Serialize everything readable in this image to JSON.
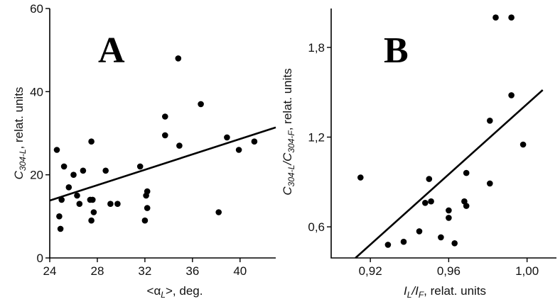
{
  "chart_data": [
    {
      "type": "scatter",
      "panel_label": "A",
      "xlabel_main": "<α",
      "xlabel_sub": "L",
      "xlabel_rest": ">, deg.",
      "ylabel_main": "C",
      "ylabel_sub": "304-L",
      "ylabel_rest": ", relat. units",
      "xlim": [
        24,
        43
      ],
      "ylim": [
        0,
        60
      ],
      "xticks": [
        24,
        28,
        32,
        36,
        40
      ],
      "yticks": [
        0,
        20,
        40,
        60
      ],
      "xtick_labels": [
        "24",
        "28",
        "32",
        "36",
        "40"
      ],
      "ytick_labels": [
        "0",
        "20",
        "40",
        "60"
      ],
      "points": [
        {
          "x": 24.6,
          "y": 26
        },
        {
          "x": 24.8,
          "y": 10
        },
        {
          "x": 25.0,
          "y": 14
        },
        {
          "x": 24.9,
          "y": 7
        },
        {
          "x": 25.2,
          "y": 22
        },
        {
          "x": 25.6,
          "y": 17
        },
        {
          "x": 26.0,
          "y": 20
        },
        {
          "x": 26.3,
          "y": 15
        },
        {
          "x": 26.5,
          "y": 13
        },
        {
          "x": 26.8,
          "y": 21
        },
        {
          "x": 27.4,
          "y": 14
        },
        {
          "x": 27.5,
          "y": 28
        },
        {
          "x": 27.6,
          "y": 14
        },
        {
          "x": 27.5,
          "y": 9
        },
        {
          "x": 27.7,
          "y": 11
        },
        {
          "x": 28.7,
          "y": 21
        },
        {
          "x": 29.1,
          "y": 13
        },
        {
          "x": 29.7,
          "y": 13
        },
        {
          "x": 31.6,
          "y": 22
        },
        {
          "x": 32.0,
          "y": 9
        },
        {
          "x": 32.1,
          "y": 15
        },
        {
          "x": 32.2,
          "y": 16
        },
        {
          "x": 32.2,
          "y": 12
        },
        {
          "x": 33.7,
          "y": 34
        },
        {
          "x": 33.7,
          "y": 29.5
        },
        {
          "x": 34.8,
          "y": 48
        },
        {
          "x": 34.9,
          "y": 27
        },
        {
          "x": 36.7,
          "y": 37
        },
        {
          "x": 38.2,
          "y": 11
        },
        {
          "x": 38.9,
          "y": 29
        },
        {
          "x": 39.9,
          "y": 26
        },
        {
          "x": 41.2,
          "y": 28
        }
      ],
      "fit_line": {
        "x": [
          24,
          43
        ],
        "y": [
          13.8,
          31.4
        ]
      }
    },
    {
      "type": "scatter",
      "panel_label": "B",
      "xlabel_main": "I",
      "xlabel_sub1": "L",
      "xlabel_mid": "/I",
      "xlabel_sub2": "F",
      "xlabel_rest": ", relat. units",
      "ylabel_main": "C",
      "ylabel_sub1": "304-L",
      "ylabel_mid": "/C",
      "ylabel_sub2": "304-F",
      "ylabel_rest": ", relat. units",
      "xlim": [
        0.9,
        1.015
      ],
      "ylim": [
        0.392,
        2.06
      ],
      "xticks": [
        0.92,
        0.96,
        1.0
      ],
      "yticks": [
        0.6,
        1.2,
        1.8
      ],
      "xtick_labels": [
        "0,92",
        "0,96",
        "1,00"
      ],
      "ytick_labels": [
        "0,6",
        "1,2",
        "1,8"
      ],
      "points": [
        {
          "x": 0.915,
          "y": 0.93
        },
        {
          "x": 0.929,
          "y": 0.48
        },
        {
          "x": 0.937,
          "y": 0.5
        },
        {
          "x": 0.945,
          "y": 0.57
        },
        {
          "x": 0.948,
          "y": 0.76
        },
        {
          "x": 0.95,
          "y": 0.92
        },
        {
          "x": 0.951,
          "y": 0.77
        },
        {
          "x": 0.956,
          "y": 0.53
        },
        {
          "x": 0.96,
          "y": 0.66
        },
        {
          "x": 0.96,
          "y": 0.71
        },
        {
          "x": 0.963,
          "y": 0.49
        },
        {
          "x": 0.968,
          "y": 0.77
        },
        {
          "x": 0.969,
          "y": 0.74
        },
        {
          "x": 0.969,
          "y": 0.96
        },
        {
          "x": 0.981,
          "y": 1.31
        },
        {
          "x": 0.981,
          "y": 0.89
        },
        {
          "x": 0.984,
          "y": 2.0
        },
        {
          "x": 0.992,
          "y": 2.0
        },
        {
          "x": 0.992,
          "y": 1.48
        },
        {
          "x": 0.998,
          "y": 1.15
        }
      ],
      "fit_line": {
        "x": [
          0.9124,
          1.008
        ],
        "y": [
          0.392,
          1.515
        ]
      }
    }
  ]
}
